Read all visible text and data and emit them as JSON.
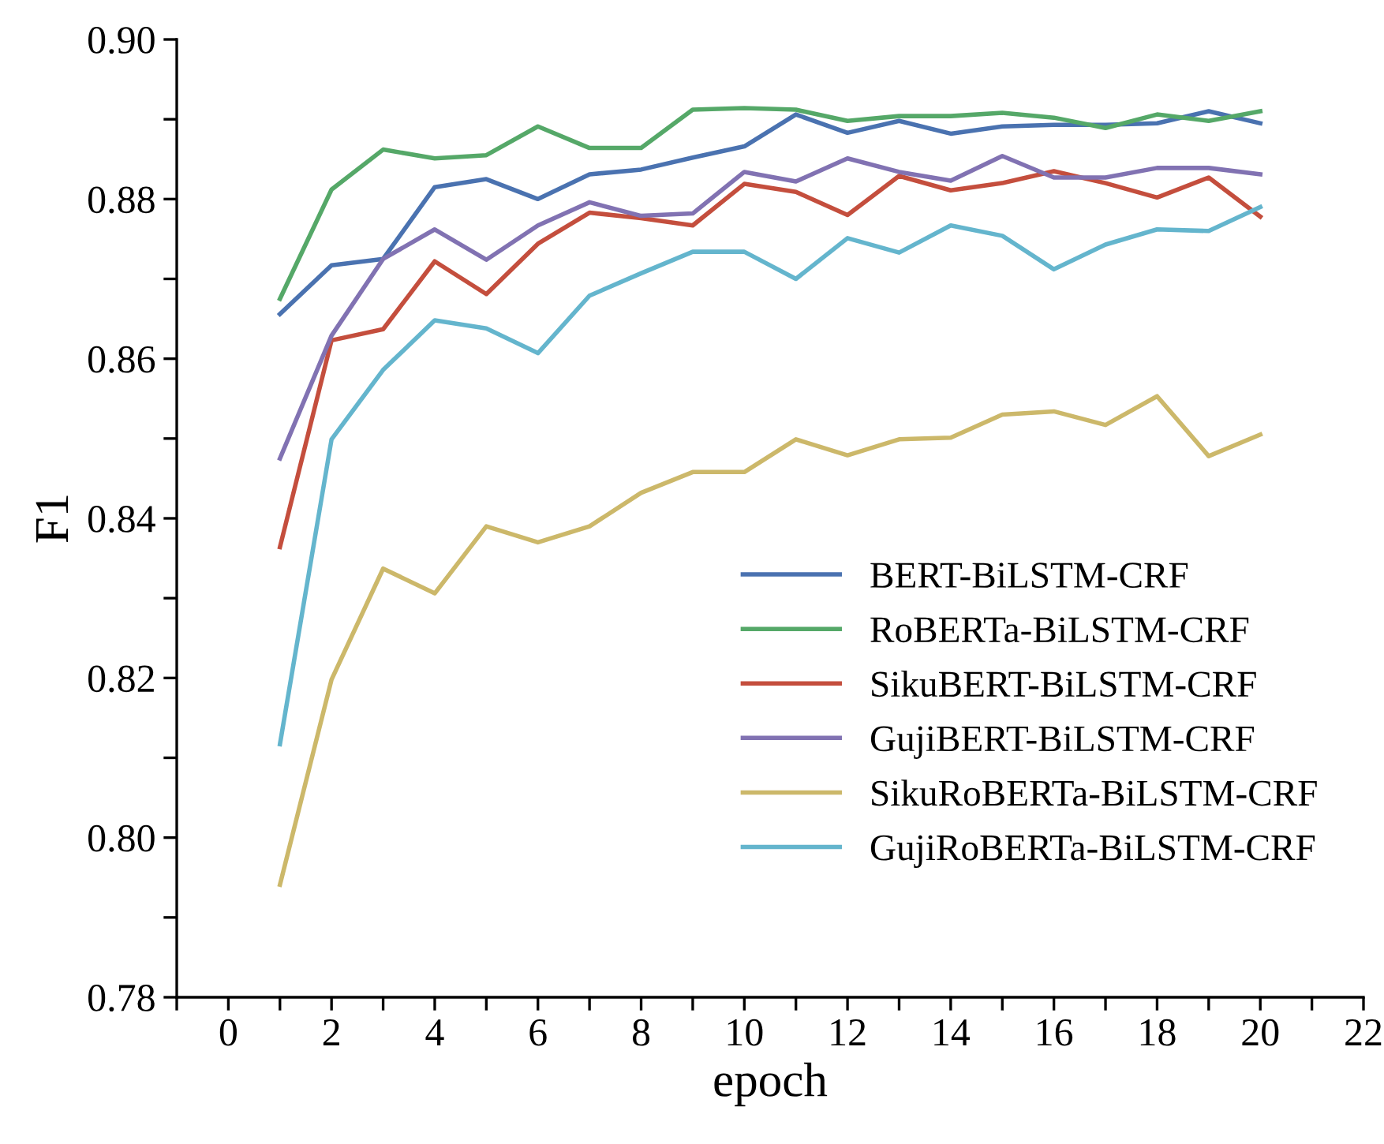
{
  "chart_data": {
    "type": "line",
    "xlabel": "epoch",
    "ylabel": "F1",
    "x": [
      1,
      2,
      3,
      4,
      5,
      6,
      7,
      8,
      9,
      10,
      11,
      12,
      13,
      14,
      15,
      16,
      17,
      18,
      19,
      20
    ],
    "series": [
      {
        "name": "BERT-BiLSTM-CRF",
        "color": "#4a72b0",
        "values": [
          0.8656,
          0.8717,
          0.8725,
          0.8815,
          0.8825,
          0.88,
          0.8831,
          0.8837,
          0.8852,
          0.8866,
          0.8906,
          0.8883,
          0.8898,
          0.8882,
          0.8891,
          0.8893,
          0.8893,
          0.8895,
          0.891,
          0.8895
        ]
      },
      {
        "name": "RoBERTa-BiLSTM-CRF",
        "color": "#55a868",
        "values": [
          0.8675,
          0.8812,
          0.8862,
          0.8851,
          0.8855,
          0.8891,
          0.8864,
          0.8864,
          0.8912,
          0.8914,
          0.8912,
          0.8898,
          0.8904,
          0.8904,
          0.8908,
          0.8902,
          0.8889,
          0.8906,
          0.8898,
          0.891
        ]
      },
      {
        "name": "SikuBERT-BiLSTM-CRF",
        "color": "#c44e3d",
        "values": [
          0.8364,
          0.8623,
          0.8637,
          0.8722,
          0.8681,
          0.8744,
          0.8783,
          0.8776,
          0.8767,
          0.8819,
          0.8809,
          0.878,
          0.8829,
          0.8811,
          0.882,
          0.8835,
          0.882,
          0.8802,
          0.8827,
          0.8778
        ]
      },
      {
        "name": "GujiBERT-BiLSTM-CRF",
        "color": "#8172b2",
        "values": [
          0.8475,
          0.8629,
          0.8725,
          0.8762,
          0.8724,
          0.8767,
          0.8796,
          0.8779,
          0.8782,
          0.8834,
          0.8822,
          0.8851,
          0.8834,
          0.8823,
          0.8854,
          0.8827,
          0.8827,
          0.8839,
          0.8839,
          0.8831
        ]
      },
      {
        "name": "SikuRoBERTa-BiLSTM-CRF",
        "color": "#ccb86a",
        "values": [
          0.7941,
          0.8198,
          0.8337,
          0.8306,
          0.839,
          0.837,
          0.839,
          0.8432,
          0.8458,
          0.8458,
          0.8499,
          0.8479,
          0.8499,
          0.8501,
          0.853,
          0.8534,
          0.8517,
          0.8553,
          0.8478,
          0.8505
        ]
      },
      {
        "name": "GujiRoBERTa-BiLSTM-CRF",
        "color": "#64b5cd",
        "values": [
          0.8117,
          0.8499,
          0.8586,
          0.8648,
          0.8638,
          0.8607,
          0.8679,
          0.8707,
          0.8734,
          0.8734,
          0.87,
          0.8751,
          0.8733,
          0.8767,
          0.8754,
          0.8712,
          0.8743,
          0.8762,
          0.876,
          0.879
        ]
      }
    ],
    "xlim": [
      -1,
      22
    ],
    "xticks": [
      {
        "value": -1,
        "label": null
      },
      0,
      {
        "value": 1,
        "label": null
      },
      2,
      {
        "value": 3,
        "label": null
      },
      4,
      {
        "value": 5,
        "label": null
      },
      6,
      {
        "value": 7,
        "label": null
      },
      8,
      {
        "value": 9,
        "label": null
      },
      10,
      {
        "value": 11,
        "label": null
      },
      12,
      {
        "value": 13,
        "label": null
      },
      14,
      {
        "value": 15,
        "label": null
      },
      16,
      {
        "value": 17,
        "label": null
      },
      18,
      {
        "value": 19,
        "label": null
      },
      20,
      {
        "value": 21,
        "label": null
      },
      22
    ],
    "ylim": [
      0.78,
      0.9
    ],
    "yticks": [
      {
        "value": 0.78,
        "label": "0.78"
      },
      {
        "value": 0.79,
        "label": null
      },
      {
        "value": 0.8,
        "label": "0.80"
      },
      {
        "value": 0.81,
        "label": null
      },
      {
        "value": 0.82,
        "label": "0.82"
      },
      {
        "value": 0.83,
        "label": null
      },
      {
        "value": 0.84,
        "label": "0.84"
      },
      {
        "value": 0.85,
        "label": null
      },
      {
        "value": 0.86,
        "label": "0.86"
      },
      {
        "value": 0.87,
        "label": null
      },
      {
        "value": 0.88,
        "label": "0.88"
      },
      {
        "value": 0.89,
        "label": null
      },
      {
        "value": 0.9,
        "label": "0.90"
      }
    ],
    "legend": "bottom right",
    "grid": false,
    "marker": "none",
    "line_style": "solid"
  }
}
